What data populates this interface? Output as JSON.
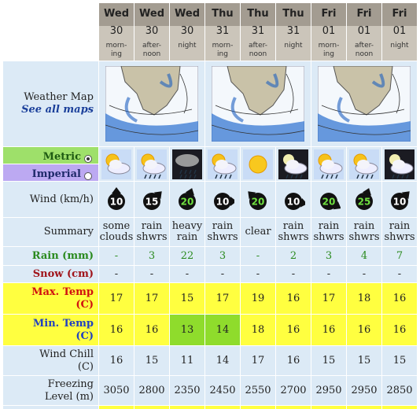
{
  "header": {
    "columns": [
      {
        "day": "Wed",
        "date": "30",
        "period": [
          "morn-",
          "ing"
        ]
      },
      {
        "day": "Wed",
        "date": "30",
        "period": [
          "after-",
          "noon"
        ]
      },
      {
        "day": "Wed",
        "date": "30",
        "period": [
          "night"
        ]
      },
      {
        "day": "Thu",
        "date": "31",
        "period": [
          "morn-",
          "ing"
        ]
      },
      {
        "day": "Thu",
        "date": "31",
        "period": [
          "after-",
          "noon"
        ]
      },
      {
        "day": "Thu",
        "date": "31",
        "period": [
          "night"
        ]
      },
      {
        "day": "Fri",
        "date": "01",
        "period": [
          "morn-",
          "ing"
        ]
      },
      {
        "day": "Fri",
        "date": "01",
        "period": [
          "after-",
          "noon"
        ]
      },
      {
        "day": "Fri",
        "date": "01",
        "period": [
          "night"
        ]
      }
    ]
  },
  "weather_map": {
    "label": "Weather Map",
    "link": "See all maps"
  },
  "units": {
    "metric": "Metric",
    "imperial": "Imperial"
  },
  "rows": [
    {
      "label": [
        "Wind (km/h)"
      ],
      "values": [
        "10",
        "15",
        "20",
        "10",
        "20",
        "10",
        "20",
        "25",
        "10"
      ]
    },
    {
      "label": [
        "Summary"
      ],
      "values": [
        [
          "some",
          "clouds"
        ],
        [
          "rain",
          "shwrs"
        ],
        [
          "heavy",
          "rain"
        ],
        [
          "rain",
          "shwrs"
        ],
        [
          "clear"
        ],
        [
          "rain",
          "shwrs"
        ],
        [
          "rain",
          "shwrs"
        ],
        [
          "rain",
          "shwrs"
        ],
        [
          "rain",
          "shwrs"
        ]
      ]
    },
    {
      "label": [
        "Rain (mm)"
      ],
      "values": [
        "-",
        "3",
        "22",
        "3",
        "-",
        "2",
        "3",
        "4",
        "7"
      ]
    },
    {
      "label": [
        "Snow (cm)"
      ],
      "values": [
        "-",
        "-",
        "-",
        "-",
        "-",
        "-",
        "-",
        "-",
        "-"
      ]
    },
    {
      "label": [
        "Max. Temp",
        "(C)"
      ],
      "values": [
        "17",
        "17",
        "15",
        "17",
        "19",
        "16",
        "17",
        "18",
        "16"
      ]
    },
    {
      "label": [
        "Min. Temp",
        "(C)"
      ],
      "values": [
        "16",
        "16",
        "13",
        "14",
        "18",
        "16",
        "16",
        "16",
        "16"
      ]
    },
    {
      "label": [
        "Wind Chill",
        "(C)"
      ],
      "values": [
        "16",
        "15",
        "11",
        "14",
        "17",
        "16",
        "15",
        "15",
        "15"
      ]
    },
    {
      "label": [
        "Freezing",
        "Level (m)"
      ],
      "values": [
        "3050",
        "2800",
        "2350",
        "2450",
        "2550",
        "2700",
        "2950",
        "2950",
        "2850"
      ]
    }
  ]
}
